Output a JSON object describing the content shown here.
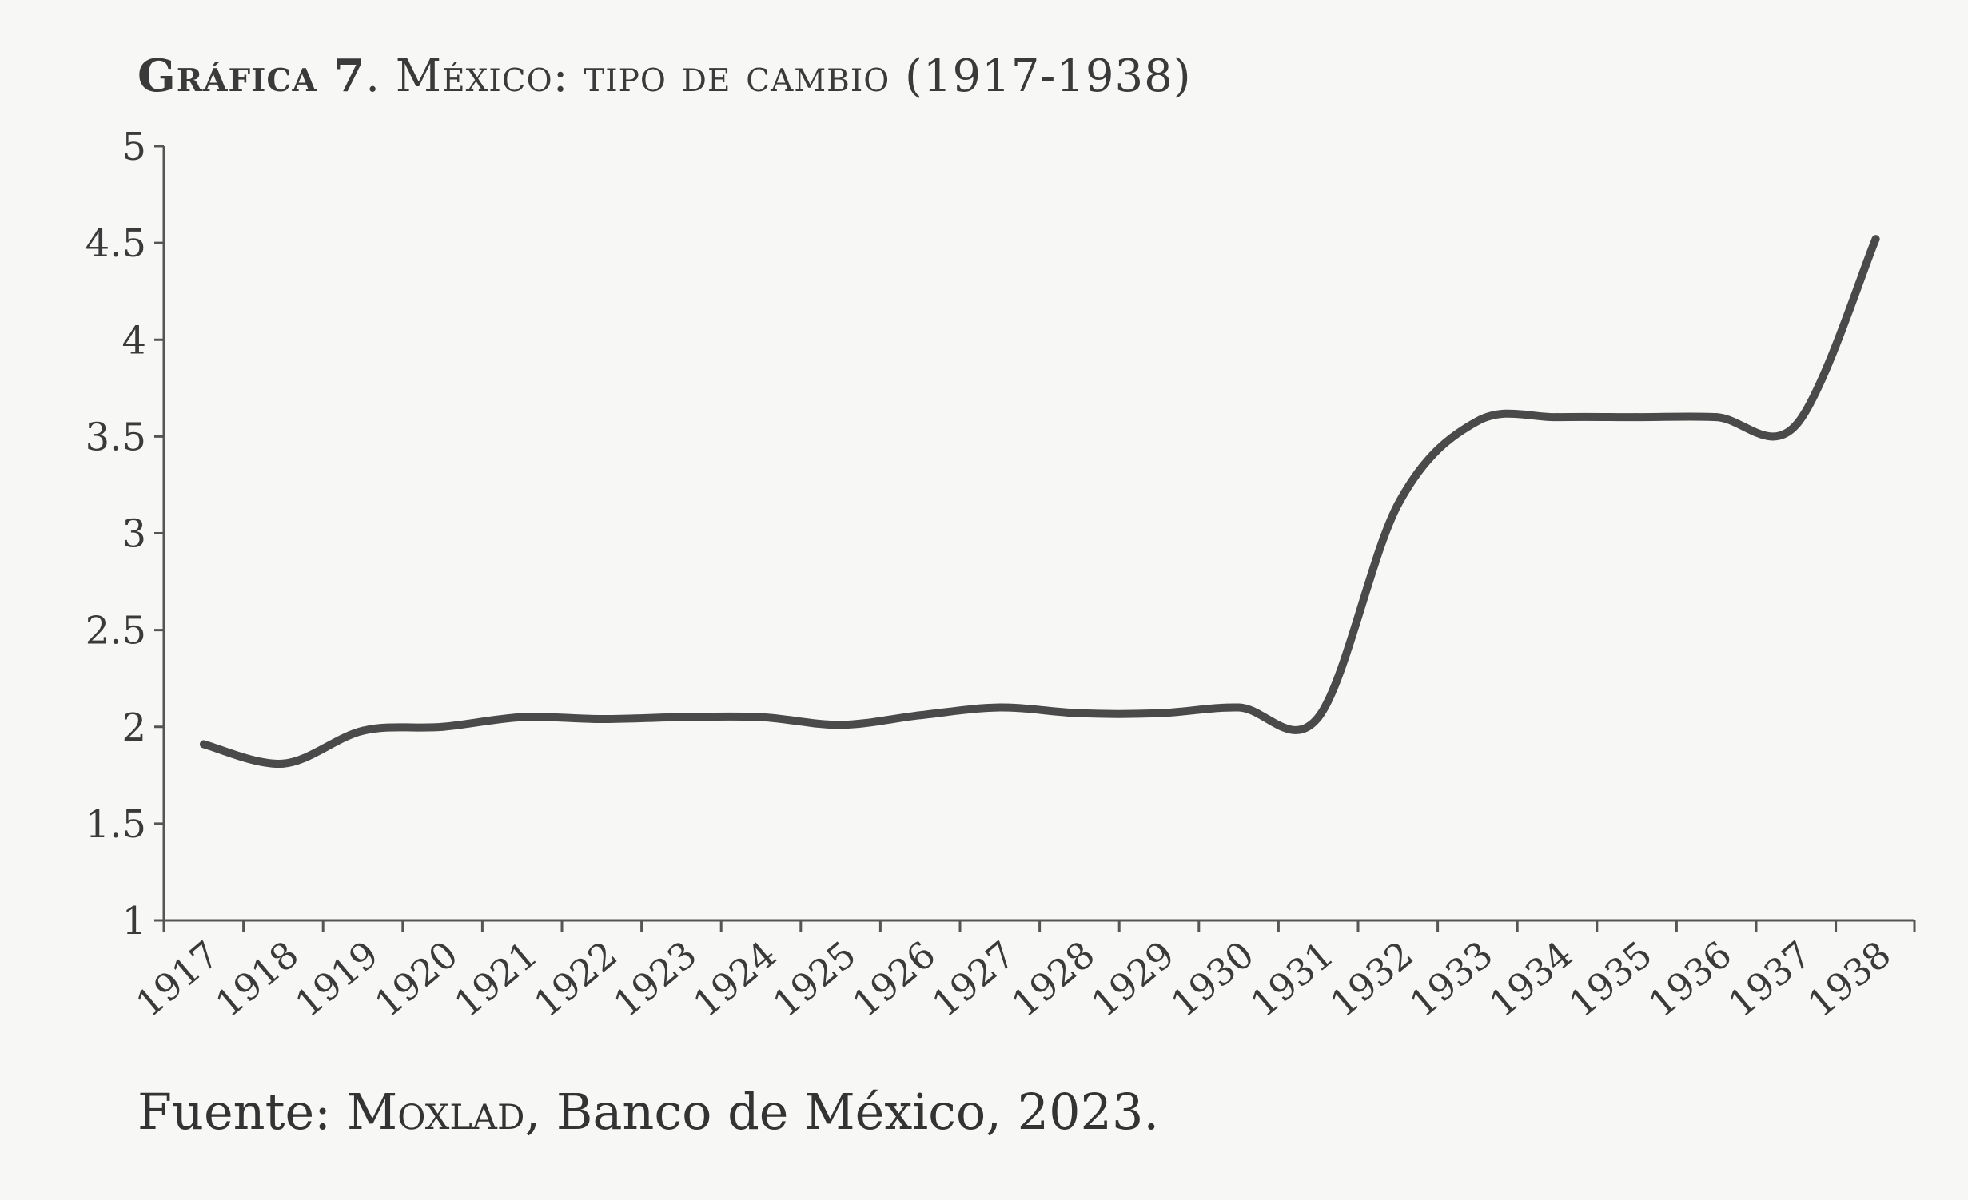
{
  "title": {
    "label": "Gráfica 7",
    "text": ". México: tipo de cambio (1917-1938)"
  },
  "source": {
    "prefix": "Fuente: ",
    "org": "Moxlad",
    "rest": ", Banco de México, 2023."
  },
  "colors": {
    "line": "#4a4a4a",
    "axis": "#555555",
    "text": "#3a3a3a",
    "background": "#f7f7f6"
  },
  "chart_data": {
    "type": "line",
    "title": "Gráfica 7. México: tipo de cambio (1917-1938)",
    "xlabel": "",
    "ylabel": "",
    "ylim": [
      1,
      5
    ],
    "yticks": [
      "1",
      "1.5",
      "2",
      "2.5",
      "3",
      "3.5",
      "4",
      "4.5",
      "5"
    ],
    "grid": false,
    "legend": "none",
    "categories": [
      "1917",
      "1918",
      "1919",
      "1920",
      "1921",
      "1922",
      "1923",
      "1924",
      "1925",
      "1926",
      "1927",
      "1928",
      "1929",
      "1930",
      "1931",
      "1932",
      "1933",
      "1934",
      "1935",
      "1936",
      "1937",
      "1938"
    ],
    "series": [
      {
        "values": [
          1.91,
          1.81,
          1.98,
          2.0,
          2.05,
          2.04,
          2.05,
          2.05,
          2.01,
          2.06,
          2.1,
          2.07,
          2.07,
          2.1,
          2.05,
          3.15,
          3.58,
          3.6,
          3.6,
          3.6,
          3.56,
          4.52
        ]
      }
    ]
  }
}
